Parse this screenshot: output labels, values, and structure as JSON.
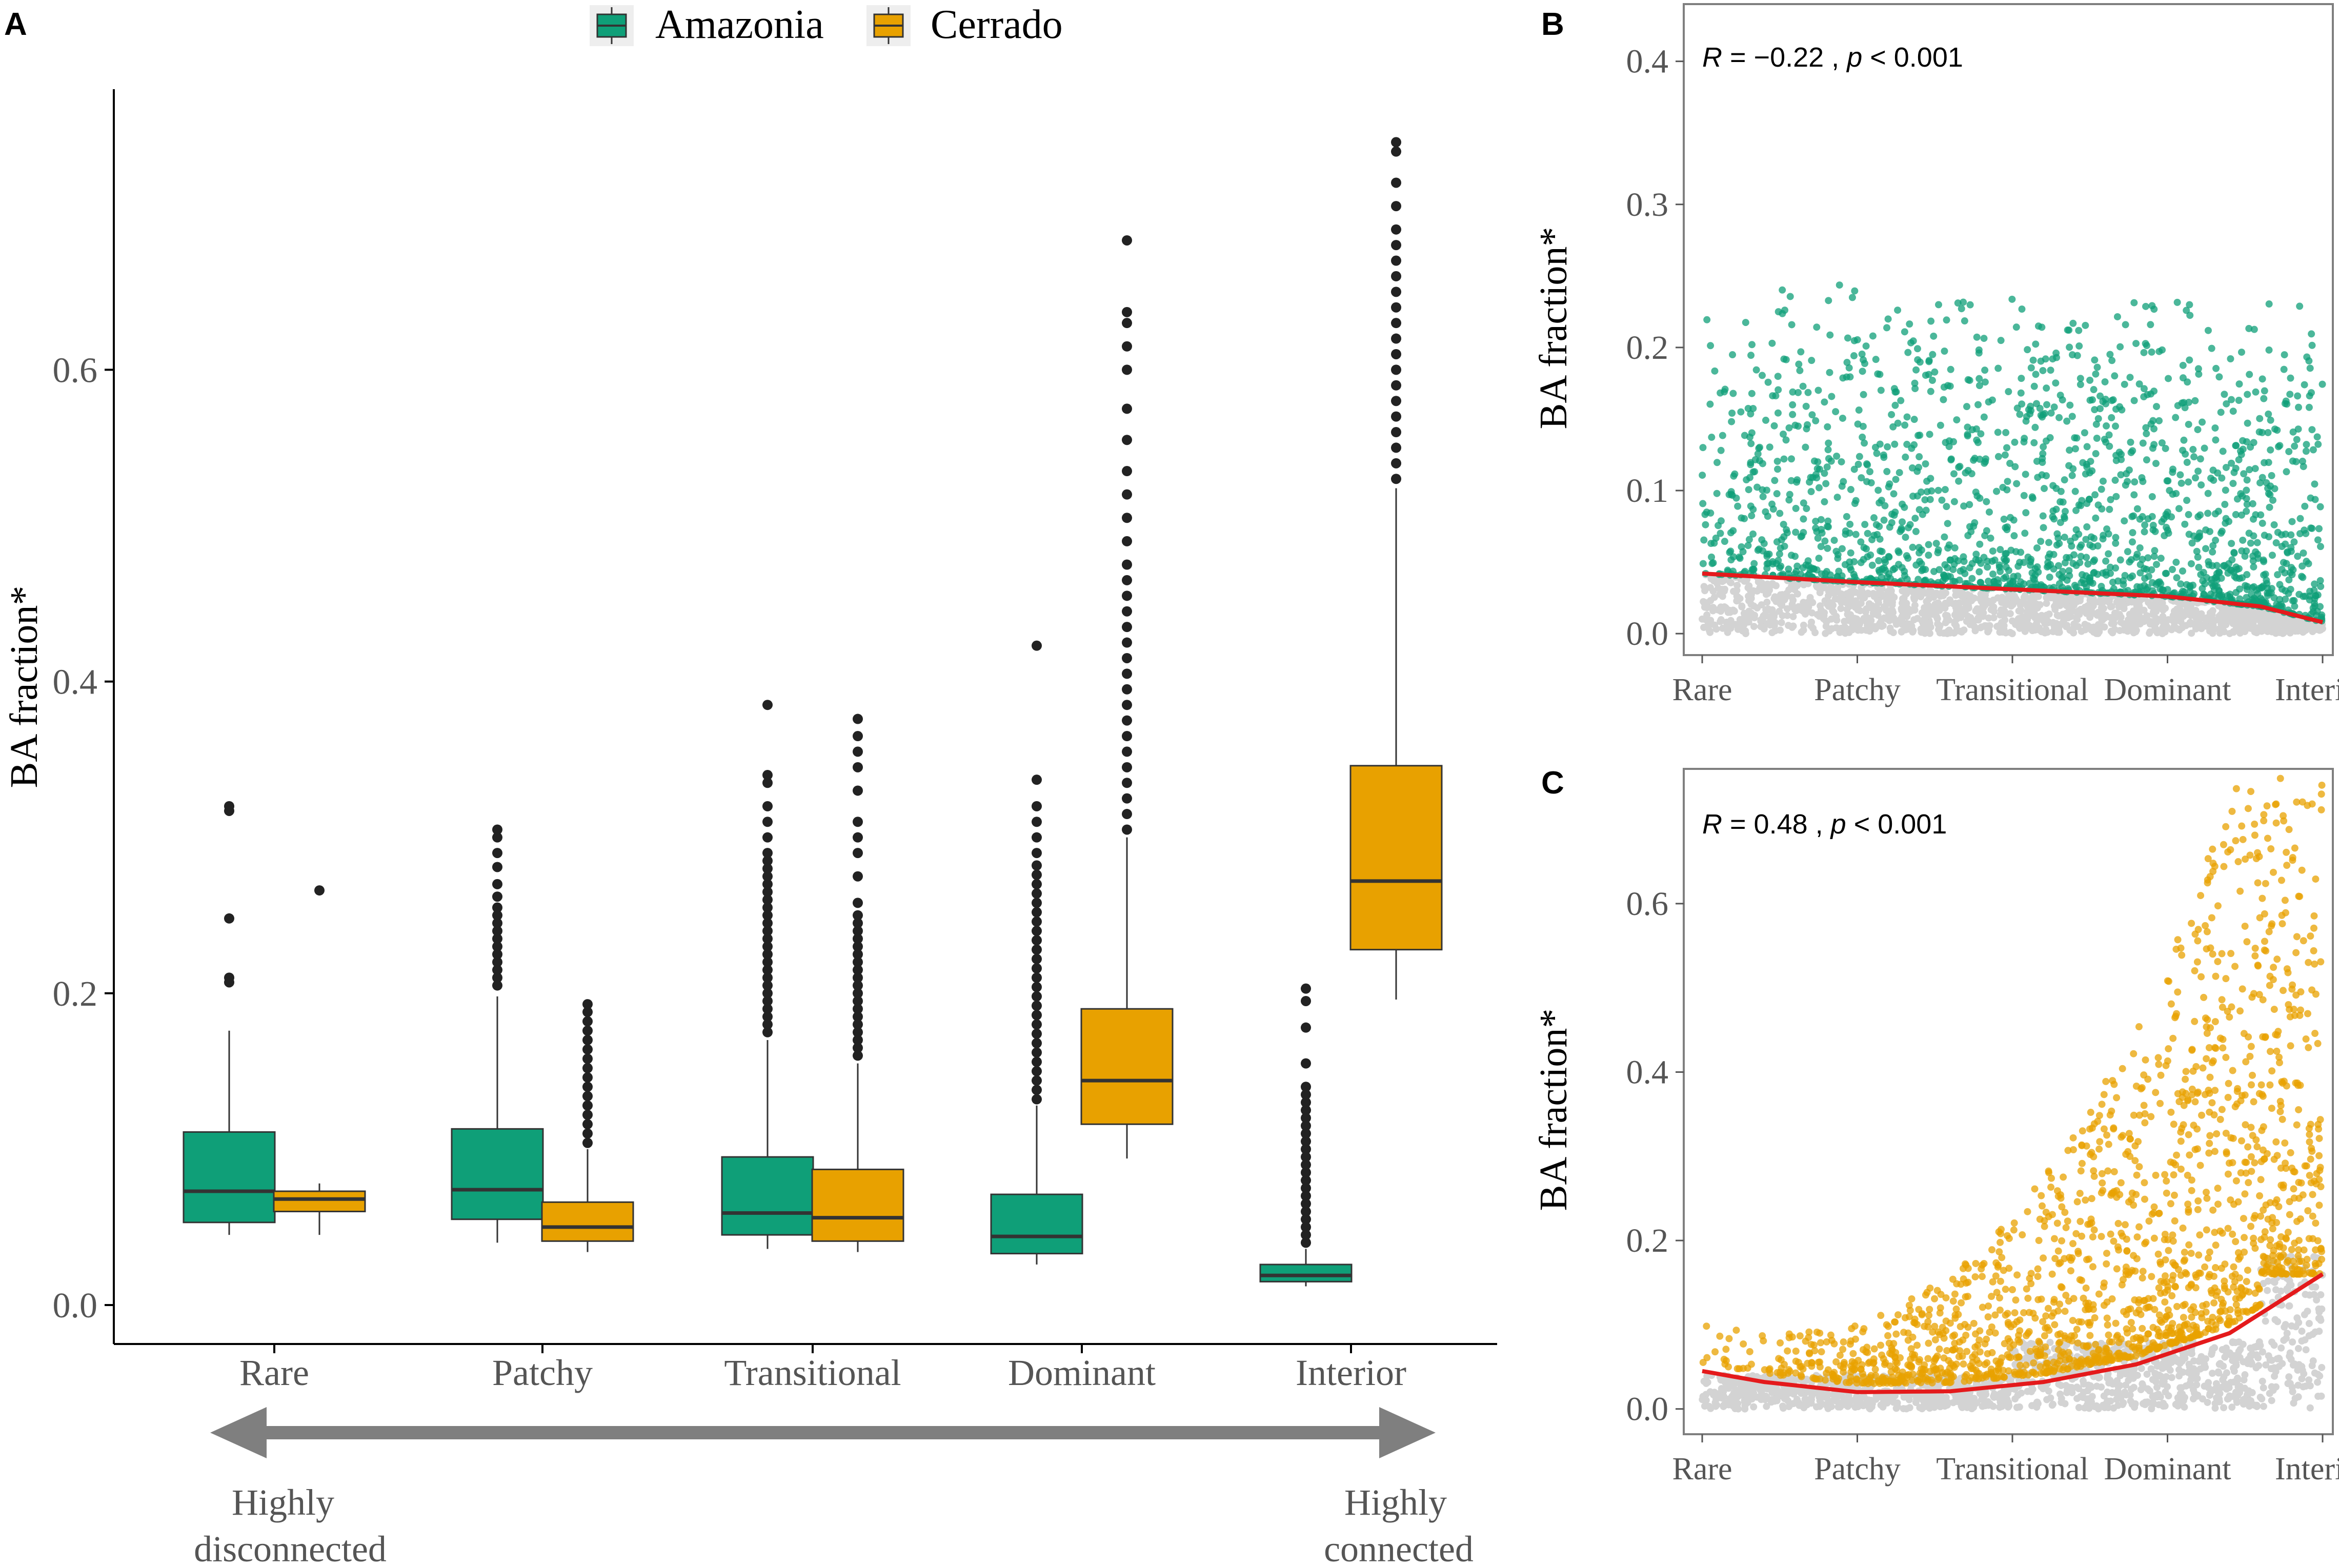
{
  "colors": {
    "amazonia": "#0f9f78",
    "cerrado": "#e8a100",
    "grey_points": "#d3d3d3",
    "fit_line": "#e41a1c",
    "outlier": "#222222",
    "arrow": "#7f7f7f"
  },
  "legend": {
    "amazonia": "Amazonia",
    "cerrado": "Cerrado"
  },
  "chart_data": [
    {
      "panel": "A",
      "type": "box",
      "ylabel": "BA fraction*",
      "ylim": [
        -0.025,
        0.78
      ],
      "yticks": [
        0.0,
        0.2,
        0.4,
        0.6
      ],
      "ytick_labels": [
        "0.0",
        "0.2",
        "0.4",
        "0.6"
      ],
      "categories": [
        "Rare",
        "Patchy",
        "Transitional",
        "Dominant",
        "Interior"
      ],
      "arrow": {
        "left_label": [
          "Highly",
          "disconnected"
        ],
        "right_label": [
          "Highly",
          "connected"
        ]
      },
      "series": [
        {
          "name": "Amazonia",
          "boxes": [
            {
              "whisker_low": 0.045,
              "q1": 0.053,
              "median": 0.073,
              "q3": 0.111,
              "whisker_high": 0.176,
              "outliers": [
                0.207,
                0.21,
                0.248,
                0.317,
                0.32
              ]
            },
            {
              "whisker_low": 0.04,
              "q1": 0.055,
              "median": 0.074,
              "q3": 0.113,
              "whisker_high": 0.198,
              "outliers": [
                0.205,
                0.21,
                0.215,
                0.22,
                0.225,
                0.23,
                0.235,
                0.24,
                0.245,
                0.25,
                0.255,
                0.262,
                0.27,
                0.281,
                0.29,
                0.3,
                0.305
              ]
            },
            {
              "whisker_low": 0.036,
              "q1": 0.045,
              "median": 0.059,
              "q3": 0.095,
              "whisker_high": 0.17,
              "outliers": [
                0.175,
                0.18,
                0.185,
                0.19,
                0.195,
                0.2,
                0.205,
                0.21,
                0.215,
                0.22,
                0.225,
                0.23,
                0.235,
                0.24,
                0.245,
                0.25,
                0.255,
                0.26,
                0.265,
                0.27,
                0.275,
                0.28,
                0.285,
                0.29,
                0.3,
                0.31,
                0.32,
                0.335,
                0.34,
                0.385
              ]
            },
            {
              "whisker_low": 0.026,
              "q1": 0.033,
              "median": 0.044,
              "q3": 0.071,
              "whisker_high": 0.128,
              "outliers": [
                0.132,
                0.138,
                0.144,
                0.15,
                0.156,
                0.162,
                0.168,
                0.174,
                0.18,
                0.186,
                0.192,
                0.198,
                0.204,
                0.21,
                0.216,
                0.222,
                0.228,
                0.234,
                0.24,
                0.246,
                0.252,
                0.258,
                0.264,
                0.27,
                0.276,
                0.282,
                0.29,
                0.3,
                0.31,
                0.32,
                0.337,
                0.423
              ]
            },
            {
              "whisker_low": 0.012,
              "q1": 0.015,
              "median": 0.019,
              "q3": 0.026,
              "whisker_high": 0.036,
              "outliers": [
                0.04,
                0.045,
                0.05,
                0.055,
                0.06,
                0.065,
                0.07,
                0.075,
                0.08,
                0.085,
                0.09,
                0.095,
                0.1,
                0.105,
                0.11,
                0.115,
                0.12,
                0.125,
                0.13,
                0.135,
                0.14,
                0.155,
                0.178,
                0.195,
                0.203
              ]
            }
          ]
        },
        {
          "name": "Cerrado",
          "boxes": [
            {
              "whisker_low": 0.045,
              "q1": 0.06,
              "median": 0.068,
              "q3": 0.073,
              "whisker_high": 0.078,
              "outliers": [
                0.266
              ]
            },
            {
              "whisker_low": 0.034,
              "q1": 0.041,
              "median": 0.05,
              "q3": 0.066,
              "whisker_high": 0.1,
              "outliers": [
                0.104,
                0.11,
                0.116,
                0.122,
                0.128,
                0.134,
                0.14,
                0.146,
                0.152,
                0.158,
                0.164,
                0.17,
                0.176,
                0.182,
                0.188,
                0.193
              ]
            },
            {
              "whisker_low": 0.034,
              "q1": 0.041,
              "median": 0.056,
              "q3": 0.087,
              "whisker_high": 0.155,
              "outliers": [
                0.16,
                0.165,
                0.17,
                0.175,
                0.18,
                0.185,
                0.19,
                0.195,
                0.2,
                0.205,
                0.21,
                0.215,
                0.22,
                0.225,
                0.23,
                0.235,
                0.24,
                0.245,
                0.25,
                0.258,
                0.275,
                0.29,
                0.3,
                0.31,
                0.33,
                0.345,
                0.355,
                0.365,
                0.376
              ]
            },
            {
              "whisker_low": 0.094,
              "q1": 0.116,
              "median": 0.144,
              "q3": 0.19,
              "whisker_high": 0.3,
              "outliers": [
                0.305,
                0.315,
                0.325,
                0.335,
                0.345,
                0.355,
                0.365,
                0.375,
                0.385,
                0.395,
                0.405,
                0.415,
                0.425,
                0.435,
                0.445,
                0.455,
                0.465,
                0.475,
                0.49,
                0.505,
                0.52,
                0.535,
                0.555,
                0.575,
                0.6,
                0.615,
                0.63,
                0.637,
                0.683
              ]
            },
            {
              "whisker_low": 0.196,
              "q1": 0.228,
              "median": 0.272,
              "q3": 0.346,
              "whisker_high": 0.524,
              "outliers": [
                0.53,
                0.54,
                0.55,
                0.56,
                0.57,
                0.58,
                0.59,
                0.6,
                0.61,
                0.62,
                0.63,
                0.64,
                0.65,
                0.66,
                0.67,
                0.68,
                0.69,
                0.705,
                0.72,
                0.74,
                0.746
              ]
            }
          ]
        }
      ]
    },
    {
      "panel": "B",
      "type": "scatter",
      "ylabel": "BA fraction*",
      "annotation": {
        "r_prefix": "R",
        "r_value": " = −0.22 , ",
        "p_prefix": "p",
        "p_value": " < 0.001"
      },
      "ylim": [
        -0.015,
        0.44
      ],
      "yticks": [
        0.0,
        0.1,
        0.2,
        0.3,
        0.4
      ],
      "ytick_labels": [
        "0.0",
        "0.1",
        "0.2",
        "0.3",
        "0.4"
      ],
      "categories": [
        "Rare",
        "Patchy",
        "Transitional",
        "Dominant",
        "Interior"
      ],
      "point_color": "#0f9f78",
      "fit_line": {
        "x": [
          0,
          0.25,
          0.5,
          0.75,
          0.9,
          1.0
        ],
        "y": [
          0.042,
          0.036,
          0.031,
          0.026,
          0.019,
          0.008
        ]
      }
    },
    {
      "panel": "C",
      "type": "scatter",
      "ylabel": "BA fraction*",
      "annotation": {
        "r_prefix": "R",
        "r_value": " = 0.48 , ",
        "p_prefix": "p",
        "p_value": " < 0.001"
      },
      "ylim": [
        -0.03,
        0.76
      ],
      "yticks": [
        0.0,
        0.2,
        0.4,
        0.6
      ],
      "ytick_labels": [
        "0.0",
        "0.2",
        "0.4",
        "0.6"
      ],
      "categories": [
        "Rare",
        "Patchy",
        "Transitional",
        "Dominant",
        "Interior"
      ],
      "point_color": "#e8a100",
      "fit_line": {
        "x": [
          0,
          0.1,
          0.25,
          0.4,
          0.55,
          0.7,
          0.85,
          1.0
        ],
        "y": [
          0.045,
          0.032,
          0.02,
          0.021,
          0.032,
          0.053,
          0.09,
          0.16
        ]
      }
    }
  ]
}
